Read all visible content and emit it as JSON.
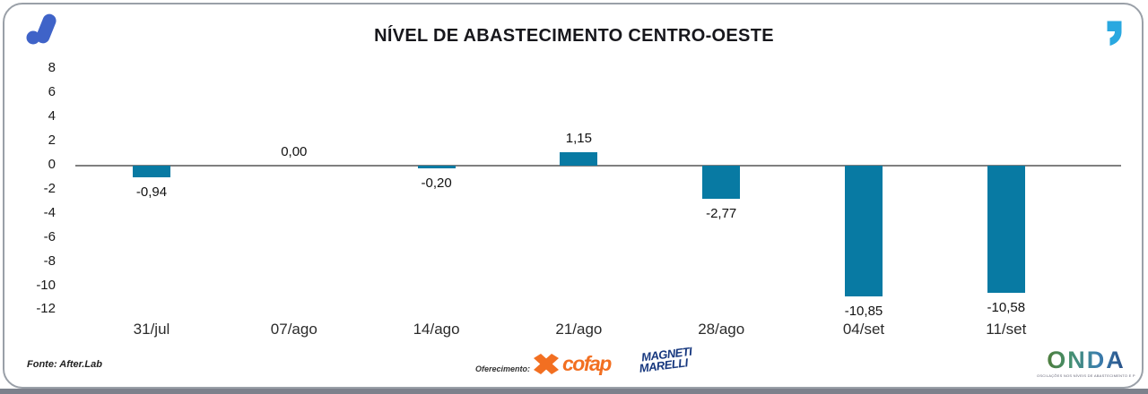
{
  "header": {
    "title": "NÍVEL DE ABASTECIMENTO CENTRO-OESTE"
  },
  "branding": {
    "logo_blue": "#3f63c8",
    "quote_cyan": "#29a8e0"
  },
  "chart_data": {
    "type": "bar",
    "title": "NÍVEL DE ABASTECIMENTO CENTRO-OESTE",
    "categories": [
      "31/jul",
      "07/ago",
      "14/ago",
      "21/ago",
      "28/ago",
      "04/set",
      "11/set"
    ],
    "values": [
      -0.94,
      0,
      -0.2,
      1.15,
      -2.77,
      -10.85,
      -10.58
    ],
    "value_labels": [
      "-0,94",
      "0,00",
      "-0,20",
      "1,15",
      "-2,77",
      "-10,85",
      "-10,58"
    ],
    "y_ticks": [
      8,
      6,
      4,
      2,
      0,
      -2,
      -4,
      -6,
      -8,
      -10,
      -12
    ],
    "ylim": [
      -12.6,
      8.8
    ],
    "bar_color": "#087aa3",
    "zero_line_color": "#7f7f7f",
    "grid": false,
    "legend": null,
    "xlabel": "",
    "ylabel": ""
  },
  "footer": {
    "source": "Fonte: After.Lab",
    "sponsor_label": "Oferecimento:",
    "sponsors": [
      {
        "name": "cofap",
        "color": "#f26f21"
      },
      {
        "name_line1": "MAGNETI",
        "name_line2": "MARELLI",
        "color": "#16377e"
      }
    ],
    "onda_logo": {
      "text": "ONDA",
      "tagline": "OSCILAÇÕES NOS NÍVEIS DE ABASTECIMENTO E PREÇO"
    }
  }
}
